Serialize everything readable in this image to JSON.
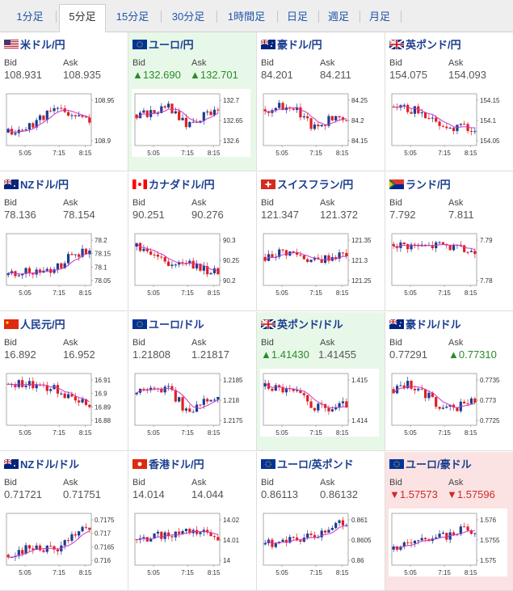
{
  "tabs": [
    {
      "label": "1分足",
      "active": false
    },
    {
      "label": "5分足",
      "active": true
    },
    {
      "label": "15分足",
      "active": false
    },
    {
      "label": "30分足",
      "active": false
    },
    {
      "label": "1時間足",
      "active": false
    },
    {
      "label": "日足",
      "active": false
    },
    {
      "label": "週足",
      "active": false
    },
    {
      "label": "月足",
      "active": false
    }
  ],
  "colors": {
    "up_candle": "#1a3d8f",
    "down_candle": "#e02020",
    "ma": "#cc33cc",
    "ma2": "#19a0c8",
    "up": "#2a8a2a",
    "down": "#cc2a2a"
  },
  "cards": [
    {
      "pair": "米ドル/円",
      "flags": [
        "us",
        "jp"
      ],
      "bid_label": "Bid",
      "ask_label": "Ask",
      "bid": "108.931",
      "ask": "108.935",
      "state": "normal",
      "bid_trend": "",
      "ask_trend": "",
      "chart": {
        "yticks": [
          "108.95",
          "108.9"
        ],
        "xticks": [
          "5:05",
          "7:15",
          "8:15"
        ],
        "seed": 11,
        "trend": [
          0.25,
          0.3,
          0.55,
          0.7,
          0.6,
          0.45
        ]
      }
    },
    {
      "pair": "ユーロ/円",
      "flags": [
        "eu",
        "jp"
      ],
      "bid_label": "Bid",
      "ask_label": "Ask",
      "bid": "132.690",
      "ask": "132.701",
      "state": "green",
      "bid_trend": "up",
      "ask_trend": "up",
      "chart": {
        "yticks": [
          "132.7",
          "132.65",
          "132.6"
        ],
        "xticks": [
          "5:05",
          "7:15",
          "8:15"
        ],
        "seed": 22,
        "trend": [
          0.6,
          0.65,
          0.75,
          0.4,
          0.55,
          0.7
        ]
      }
    },
    {
      "pair": "豪ドル/円",
      "flags": [
        "au",
        "jp"
      ],
      "bid_label": "Bid",
      "ask_label": "Ask",
      "bid": "84.201",
      "ask": "84.211",
      "state": "normal",
      "bid_trend": "",
      "ask_trend": "",
      "chart": {
        "yticks": [
          "84.25",
          "84.2",
          "84.15"
        ],
        "xticks": [
          "5:05",
          "7:15",
          "8:15"
        ],
        "seed": 33,
        "trend": [
          0.7,
          0.75,
          0.65,
          0.35,
          0.5,
          0.5
        ]
      }
    },
    {
      "pair": "英ポンド/円",
      "flags": [
        "gb",
        "jp"
      ],
      "bid_label": "Bid",
      "ask_label": "Ask",
      "bid": "154.075",
      "ask": "154.093",
      "state": "normal",
      "bid_trend": "",
      "ask_trend": "",
      "chart": {
        "yticks": [
          "154.15",
          "154.1",
          "154.05"
        ],
        "xticks": [
          "5:05",
          "7:15",
          "8:15"
        ],
        "seed": 44,
        "trend": [
          0.75,
          0.7,
          0.6,
          0.4,
          0.35,
          0.3
        ]
      }
    },
    {
      "pair": "NZドル/円",
      "flags": [
        "nz",
        "jp"
      ],
      "bid_label": "Bid",
      "ask_label": "Ask",
      "bid": "78.136",
      "ask": "78.154",
      "state": "normal",
      "bid_trend": "",
      "ask_trend": "",
      "chart": {
        "yticks": [
          "78.2",
          "78.15",
          "78.1",
          "78.05"
        ],
        "xticks": [
          "5:05",
          "7:15",
          "8:15"
        ],
        "seed": 55,
        "trend": [
          0.2,
          0.25,
          0.3,
          0.35,
          0.6,
          0.7
        ]
      }
    },
    {
      "pair": "カナダドル/円",
      "flags": [
        "ca",
        "jp"
      ],
      "bid_label": "Bid",
      "ask_label": "Ask",
      "bid": "90.251",
      "ask": "90.276",
      "state": "normal",
      "bid_trend": "",
      "ask_trend": "",
      "chart": {
        "yticks": [
          "90.3",
          "90.25",
          "90.2"
        ],
        "xticks": [
          "5:05",
          "7:15",
          "8:15"
        ],
        "seed": 66,
        "trend": [
          0.75,
          0.55,
          0.4,
          0.45,
          0.3,
          0.25
        ]
      }
    },
    {
      "pair": "スイスフラン/円",
      "flags": [
        "ch",
        "jp"
      ],
      "bid_label": "Bid",
      "ask_label": "Ask",
      "bid": "121.347",
      "ask": "121.372",
      "state": "normal",
      "bid_trend": "",
      "ask_trend": "",
      "chart": {
        "yticks": [
          "121.35",
          "121.3",
          "121.25"
        ],
        "xticks": [
          "5:05",
          "7:15",
          "8:15"
        ],
        "seed": 77,
        "trend": [
          0.55,
          0.65,
          0.6,
          0.45,
          0.55,
          0.6
        ]
      }
    },
    {
      "pair": "ランド/円",
      "flags": [
        "za",
        "jp"
      ],
      "bid_label": "Bid",
      "ask_label": "Ask",
      "bid": "7.792",
      "ask": "7.811",
      "state": "normal",
      "bid_trend": "",
      "ask_trend": "",
      "chart": {
        "yticks": [
          "7.79",
          "7.78"
        ],
        "xticks": [
          "5:05",
          "7:15",
          "8:15"
        ],
        "seed": 88,
        "trend": [
          0.8,
          0.78,
          0.75,
          0.8,
          0.7,
          0.65
        ]
      }
    },
    {
      "pair": "人民元/円",
      "flags": [
        "cn",
        "jp"
      ],
      "bid_label": "Bid",
      "ask_label": "Ask",
      "bid": "16.892",
      "ask": "16.952",
      "state": "normal",
      "bid_trend": "",
      "ask_trend": "",
      "chart": {
        "yticks": [
          "16.91",
          "16.9",
          "16.89",
          "16.88"
        ],
        "xticks": [
          "5:05",
          "7:15",
          "8:15"
        ],
        "seed": 99,
        "trend": [
          0.8,
          0.78,
          0.75,
          0.7,
          0.5,
          0.4
        ]
      }
    },
    {
      "pair": "ユーロ/ドル",
      "flags": [
        "eu",
        "us"
      ],
      "bid_label": "Bid",
      "ask_label": "Ask",
      "bid": "1.21808",
      "ask": "1.21817",
      "state": "normal",
      "bid_trend": "",
      "ask_trend": "",
      "chart": {
        "yticks": [
          "1.2185",
          "1.218",
          "1.2175"
        ],
        "xticks": [
          "5:05",
          "7:15",
          "8:15"
        ],
        "seed": 110,
        "trend": [
          0.6,
          0.75,
          0.7,
          0.3,
          0.4,
          0.6
        ]
      }
    },
    {
      "pair": "英ポンド/ドル",
      "flags": [
        "gb",
        "us"
      ],
      "bid_label": "Bid",
      "ask_label": "Ask",
      "bid": "1.41430",
      "ask": "1.41455",
      "state": "green",
      "bid_trend": "up",
      "ask_trend": "",
      "chart": {
        "yticks": [
          "1.415",
          "1.414"
        ],
        "xticks": [
          "5:05",
          "7:15",
          "8:15"
        ],
        "seed": 121,
        "trend": [
          0.75,
          0.7,
          0.6,
          0.35,
          0.3,
          0.4
        ]
      }
    },
    {
      "pair": "豪ドル/ドル",
      "flags": [
        "au",
        "us"
      ],
      "bid_label": "Bid",
      "ask_label": "Ask",
      "bid": "0.77291",
      "ask": "0.77310",
      "state": "normal",
      "bid_trend": "",
      "ask_trend": "up",
      "chart": {
        "yticks": [
          "0.7735",
          "0.773",
          "0.7725"
        ],
        "xticks": [
          "5:05",
          "7:15",
          "8:15"
        ],
        "seed": 132,
        "trend": [
          0.7,
          0.8,
          0.6,
          0.3,
          0.35,
          0.5
        ]
      }
    },
    {
      "pair": "NZドル/ドル",
      "flags": [
        "nz",
        "us"
      ],
      "bid_label": "Bid",
      "ask_label": "Ask",
      "bid": "0.71721",
      "ask": "0.71751",
      "state": "normal",
      "bid_trend": "",
      "ask_trend": "",
      "chart": {
        "yticks": [
          "0.7175",
          "0.717",
          "0.7165",
          "0.716"
        ],
        "xticks": [
          "5:05",
          "7:15",
          "8:15"
        ],
        "seed": 143,
        "trend": [
          0.2,
          0.3,
          0.35,
          0.3,
          0.55,
          0.75
        ]
      }
    },
    {
      "pair": "香港ドル/円",
      "flags": [
        "hk",
        "jp"
      ],
      "bid_label": "Bid",
      "ask_label": "Ask",
      "bid": "14.014",
      "ask": "14.044",
      "state": "normal",
      "bid_trend": "",
      "ask_trend": "",
      "chart": {
        "yticks": [
          "14.02",
          "14.01",
          "14"
        ],
        "xticks": [
          "5:05",
          "7:15",
          "8:15"
        ],
        "seed": 154,
        "trend": [
          0.5,
          0.55,
          0.6,
          0.65,
          0.6,
          0.55
        ]
      }
    },
    {
      "pair": "ユーロ/英ポンド",
      "flags": [
        "eu",
        "gb"
      ],
      "bid_label": "Bid",
      "ask_label": "Ask",
      "bid": "0.86113",
      "ask": "0.86132",
      "state": "normal",
      "bid_trend": "",
      "ask_trend": "",
      "chart": {
        "yticks": [
          "0.861",
          "0.8605",
          "0.86"
        ],
        "xticks": [
          "5:05",
          "7:15",
          "8:15"
        ],
        "seed": 165,
        "trend": [
          0.4,
          0.45,
          0.5,
          0.55,
          0.7,
          0.85
        ]
      }
    },
    {
      "pair": "ユーロ/豪ドル",
      "flags": [
        "eu",
        "au"
      ],
      "bid_label": "Bid",
      "ask_label": "Ask",
      "bid": "1.57573",
      "ask": "1.57596",
      "state": "red",
      "bid_trend": "down",
      "ask_trend": "down",
      "chart": {
        "yticks": [
          "1.576",
          "1.5755",
          "1.575"
        ],
        "xticks": [
          "5:05",
          "7:15",
          "8:15"
        ],
        "seed": 176,
        "trend": [
          0.3,
          0.4,
          0.5,
          0.55,
          0.65,
          0.7
        ]
      }
    }
  ]
}
